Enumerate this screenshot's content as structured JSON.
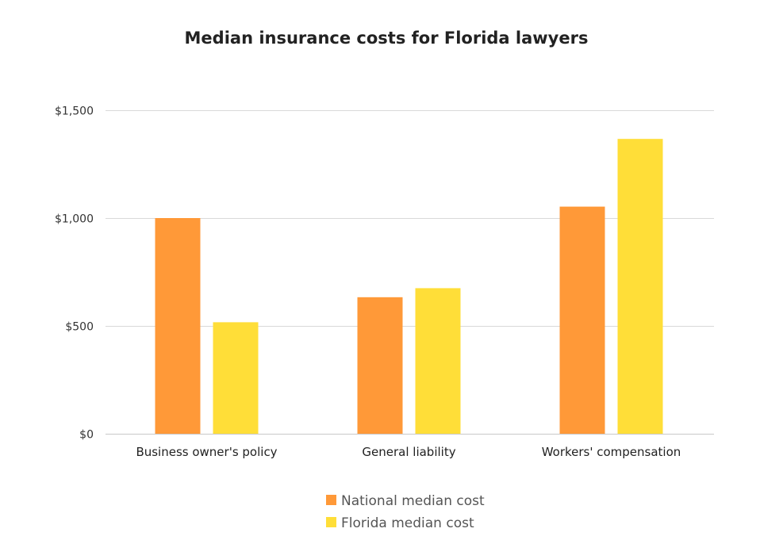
{
  "chart_data": {
    "type": "bar",
    "title": "Median insurance costs for Florida lawyers",
    "categories": [
      "Business owner's policy",
      "General liability",
      "Workers' compensation"
    ],
    "series": [
      {
        "name": "National median cost",
        "values": [
          1000,
          633,
          1053
        ],
        "color": "#FF9938"
      },
      {
        "name": "Florida median cost",
        "values": [
          517,
          675,
          1367
        ],
        "color": "#FFDE38"
      }
    ],
    "ylim": [
      0,
      1500
    ],
    "yticks": [
      0,
      500,
      1000,
      1500
    ],
    "ytick_labels": [
      "$0",
      "$500",
      "$1,000",
      "$1,500"
    ],
    "xlabel": "",
    "ylabel": "",
    "grid": true,
    "legend_position": "bottom"
  }
}
